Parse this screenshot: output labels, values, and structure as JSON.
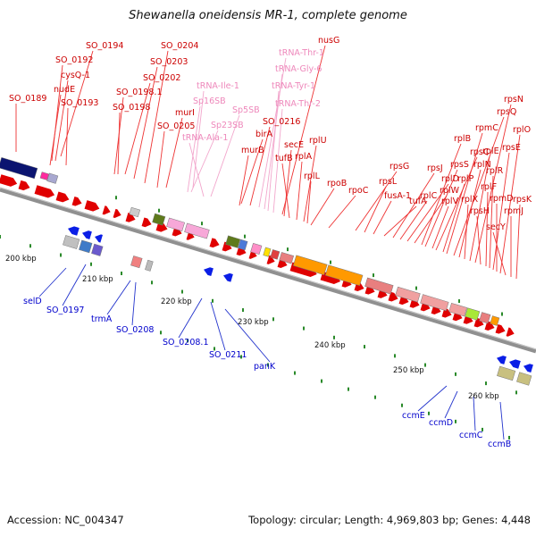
{
  "title": "Shewanella oneidensis MR-1, complete genome",
  "footer": {
    "accession": "Accession: NC_004347",
    "summary": "Topology: circular; Length: 4,969,803 bp; Genes: 4,448"
  },
  "colors": {
    "forward_gene": "#e00000",
    "reverse_gene": "#0a1ee6",
    "label_forward": "#cc0000",
    "label_reverse": "#0000cc",
    "label_rna": "#ee88bb",
    "backbone": "#909090",
    "tick": "#2a8a2a"
  },
  "kbp_markers": [
    "200 kbp",
    "210 kbp",
    "220 kbp",
    "230 kbp",
    "240 kbp",
    "250 kbp",
    "260 kbp"
  ],
  "top_labels": [
    {
      "text": "SO_0189",
      "color": "#cc0000"
    },
    {
      "text": "SO_0192",
      "color": "#cc0000"
    },
    {
      "text": "SO_0194",
      "color": "#cc0000"
    },
    {
      "text": "cysQ-1",
      "color": "#cc0000"
    },
    {
      "text": "nudE",
      "color": "#cc0000"
    },
    {
      "text": "SO_0193",
      "color": "#cc0000"
    },
    {
      "text": "SO_0198.1",
      "color": "#cc0000"
    },
    {
      "text": "SO_0198",
      "color": "#cc0000"
    },
    {
      "text": "SO_0202",
      "color": "#cc0000"
    },
    {
      "text": "SO_0203",
      "color": "#cc0000"
    },
    {
      "text": "SO_0204",
      "color": "#cc0000"
    },
    {
      "text": "murI",
      "color": "#cc0000"
    },
    {
      "text": "SO_0205",
      "color": "#cc0000"
    },
    {
      "text": "tRNA-Ile-1",
      "color": "#ee88bb"
    },
    {
      "text": "Sp16SB",
      "color": "#ee88bb"
    },
    {
      "text": "Sp23SB",
      "color": "#ee88bb"
    },
    {
      "text": "tRNA-Ala-1",
      "color": "#ee88bb"
    },
    {
      "text": "Sp5SB",
      "color": "#ee88bb"
    },
    {
      "text": "birA",
      "color": "#cc0000"
    },
    {
      "text": "murB",
      "color": "#cc0000"
    },
    {
      "text": "SO_0216",
      "color": "#cc0000"
    },
    {
      "text": "tRNA-Thr-1",
      "color": "#ee88bb"
    },
    {
      "text": "tRNA-Gly-6",
      "color": "#ee88bb"
    },
    {
      "text": "tRNA-Tyr-1",
      "color": "#ee88bb"
    },
    {
      "text": "tRNA-Thr-2",
      "color": "#ee88bb"
    },
    {
      "text": "nusG",
      "color": "#cc0000"
    },
    {
      "text": "secE",
      "color": "#cc0000"
    },
    {
      "text": "tufB",
      "color": "#cc0000"
    },
    {
      "text": "rplA",
      "color": "#cc0000"
    },
    {
      "text": "rplU",
      "color": "#cc0000"
    },
    {
      "text": "rplL",
      "color": "#cc0000"
    },
    {
      "text": "rpoB",
      "color": "#cc0000"
    },
    {
      "text": "rpoC",
      "color": "#cc0000"
    },
    {
      "text": "rpsG",
      "color": "#cc0000"
    },
    {
      "text": "rpsL",
      "color": "#cc0000"
    },
    {
      "text": "fusA-1",
      "color": "#cc0000"
    },
    {
      "text": "tufA",
      "color": "#cc0000"
    },
    {
      "text": "rpsJ",
      "color": "#cc0000"
    },
    {
      "text": "rplC",
      "color": "#cc0000"
    },
    {
      "text": "rplD",
      "color": "#cc0000"
    },
    {
      "text": "rplW",
      "color": "#cc0000"
    },
    {
      "text": "rplB",
      "color": "#cc0000"
    },
    {
      "text": "rpsS",
      "color": "#cc0000"
    },
    {
      "text": "rplV",
      "color": "#cc0000"
    },
    {
      "text": "rpsC",
      "color": "#cc0000"
    },
    {
      "text": "rplP",
      "color": "#cc0000"
    },
    {
      "text": "rpmC",
      "color": "#cc0000"
    },
    {
      "text": "rpsQ",
      "color": "#cc0000"
    },
    {
      "text": "rplN",
      "color": "#cc0000"
    },
    {
      "text": "rplX",
      "color": "#cc0000"
    },
    {
      "text": "rplE",
      "color": "#cc0000"
    },
    {
      "text": "rpsN",
      "color": "#cc0000"
    },
    {
      "text": "rpsH",
      "color": "#cc0000"
    },
    {
      "text": "rplF",
      "color": "#cc0000"
    },
    {
      "text": "rplR",
      "color": "#cc0000"
    },
    {
      "text": "rpsE",
      "color": "#cc0000"
    },
    {
      "text": "rpmD",
      "color": "#cc0000"
    },
    {
      "text": "rplO",
      "color": "#cc0000"
    },
    {
      "text": "secY",
      "color": "#cc0000"
    },
    {
      "text": "rpmJ",
      "color": "#cc0000"
    },
    {
      "text": "rpsK",
      "color": "#cc0000"
    }
  ],
  "bottom_labels": [
    {
      "text": "selD",
      "color": "#0000cc"
    },
    {
      "text": "SO_0197",
      "color": "#0000cc"
    },
    {
      "text": "trmA",
      "color": "#0000cc"
    },
    {
      "text": "SO_0208",
      "color": "#0000cc"
    },
    {
      "text": "SO_0208.1",
      "color": "#0000cc"
    },
    {
      "text": "SO_0211",
      "color": "#0000cc"
    },
    {
      "text": "panK",
      "color": "#0000cc"
    },
    {
      "text": "ccmE",
      "color": "#0000cc"
    },
    {
      "text": "ccmD",
      "color": "#0000cc"
    },
    {
      "text": "ccmC",
      "color": "#0000cc"
    },
    {
      "text": "ccmB",
      "color": "#0000cc"
    }
  ]
}
